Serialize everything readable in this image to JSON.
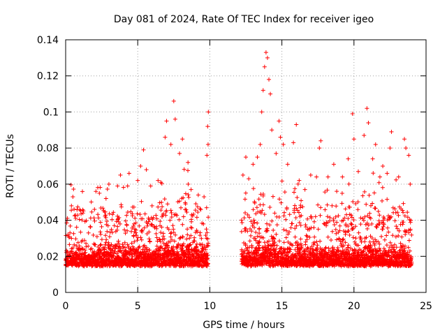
{
  "chart_data": {
    "type": "scatter",
    "title": "Day 081 of 2024, Rate Of TEC Index for receiver igeo",
    "xlabel": "GPS time / hours",
    "ylabel": "ROTI / TECUs",
    "xlim": [
      0,
      25
    ],
    "ylim": [
      0,
      0.14
    ],
    "x_ticks": [
      0,
      5,
      10,
      15,
      20,
      25
    ],
    "x_tick_labels": [
      "0",
      "5",
      "10",
      "15",
      "20",
      "25"
    ],
    "y_ticks": [
      0,
      0.02,
      0.04,
      0.06,
      0.08,
      0.1,
      0.12,
      0.14
    ],
    "y_tick_labels": [
      "0",
      "0.02",
      "0.04",
      "0.06",
      "0.08",
      "0.1",
      "0.12",
      "0.14"
    ],
    "grid": true,
    "marker": "+",
    "color": "#ff0000",
    "series": [
      {
        "name": "ROTI",
        "coverage_hours": [
          [
            0,
            9.9
          ],
          [
            12.2,
            24
          ]
        ],
        "points": [
          [
            0.1,
            0.04
          ],
          [
            0.3,
            0.033
          ],
          [
            0.4,
            0.048
          ],
          [
            0.5,
            0.053
          ],
          [
            0.7,
            0.041
          ],
          [
            1.2,
            0.044
          ],
          [
            2.0,
            0.046
          ],
          [
            2.1,
            0.056
          ],
          [
            2.8,
            0.052
          ],
          [
            3.0,
            0.06
          ],
          [
            3.6,
            0.059
          ],
          [
            3.8,
            0.065
          ],
          [
            4.3,
            0.059
          ],
          [
            4.4,
            0.066
          ],
          [
            5.0,
            0.062
          ],
          [
            5.2,
            0.07
          ],
          [
            5.4,
            0.079
          ],
          [
            5.6,
            0.068
          ],
          [
            5.9,
            0.059
          ],
          [
            6.6,
            0.061
          ],
          [
            6.9,
            0.086
          ],
          [
            7.0,
            0.095
          ],
          [
            7.3,
            0.082
          ],
          [
            7.5,
            0.106
          ],
          [
            7.6,
            0.096
          ],
          [
            7.9,
            0.077
          ],
          [
            8.1,
            0.085
          ],
          [
            8.5,
            0.06
          ],
          [
            8.7,
            0.057
          ],
          [
            9.2,
            0.054
          ],
          [
            9.6,
            0.053
          ],
          [
            9.8,
            0.076
          ],
          [
            9.9,
            0.1
          ],
          [
            9.85,
            0.092
          ],
          [
            9.88,
            0.082
          ],
          [
            12.3,
            0.065
          ],
          [
            12.5,
            0.075
          ],
          [
            12.7,
            0.063
          ],
          [
            13.0,
            0.071
          ],
          [
            13.3,
            0.075
          ],
          [
            13.5,
            0.082
          ],
          [
            13.6,
            0.1
          ],
          [
            13.7,
            0.112
          ],
          [
            13.8,
            0.125
          ],
          [
            13.9,
            0.133
          ],
          [
            14.0,
            0.13
          ],
          [
            14.1,
            0.118
          ],
          [
            14.2,
            0.11
          ],
          [
            14.3,
            0.09
          ],
          [
            14.6,
            0.077
          ],
          [
            14.8,
            0.095
          ],
          [
            14.9,
            0.086
          ],
          [
            15.1,
            0.082
          ],
          [
            15.4,
            0.071
          ],
          [
            15.8,
            0.083
          ],
          [
            16.0,
            0.093
          ],
          [
            16.2,
            0.062
          ],
          [
            16.6,
            0.057
          ],
          [
            17.0,
            0.065
          ],
          [
            17.4,
            0.064
          ],
          [
            17.6,
            0.08
          ],
          [
            17.7,
            0.084
          ],
          [
            18.2,
            0.064
          ],
          [
            18.6,
            0.071
          ],
          [
            19.2,
            0.064
          ],
          [
            19.6,
            0.074
          ],
          [
            19.9,
            0.099
          ],
          [
            20.0,
            0.085
          ],
          [
            20.3,
            0.067
          ],
          [
            20.7,
            0.087
          ],
          [
            20.9,
            0.102
          ],
          [
            21.0,
            0.094
          ],
          [
            21.3,
            0.074
          ],
          [
            21.5,
            0.082
          ],
          [
            21.8,
            0.064
          ],
          [
            22.0,
            0.07
          ],
          [
            22.3,
            0.066
          ],
          [
            22.6,
            0.089
          ],
          [
            22.5,
            0.08
          ],
          [
            23.1,
            0.064
          ],
          [
            23.5,
            0.085
          ],
          [
            23.6,
            0.08
          ],
          [
            23.8,
            0.076
          ],
          [
            23.9,
            0.06
          ]
        ]
      }
    ]
  }
}
